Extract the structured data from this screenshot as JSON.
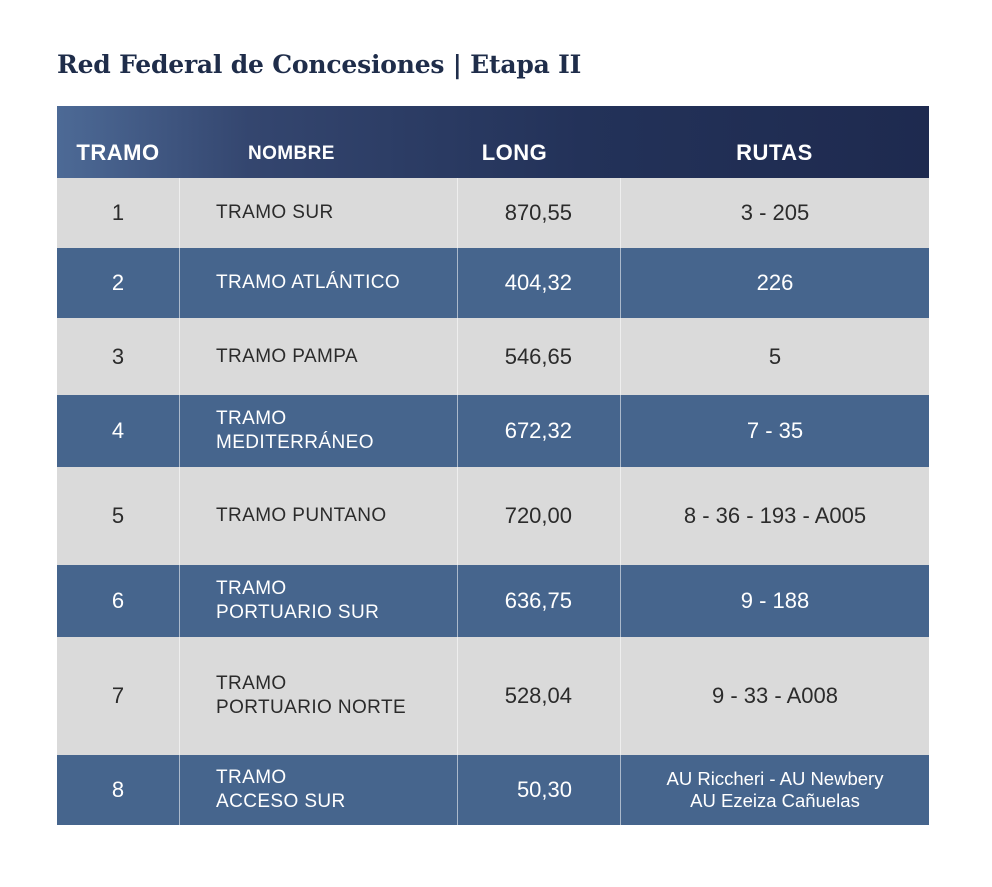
{
  "title": "Red Federal de Concesiones | Etapa II",
  "headers": {
    "tramo": "TRAMO",
    "nombre": "NOMBRE",
    "long": "LONG",
    "rutas": "RUTAS"
  },
  "rows": [
    {
      "tramo": "1",
      "nombre": [
        "TRAMO SUR"
      ],
      "long": "870,55",
      "rutas": [
        "3 - 205"
      ]
    },
    {
      "tramo": "2",
      "nombre": [
        "TRAMO ATLÁNTICO"
      ],
      "long": "404,32",
      "rutas": [
        "226"
      ]
    },
    {
      "tramo": "3",
      "nombre": [
        "TRAMO PAMPA"
      ],
      "long": "546,65",
      "rutas": [
        "5"
      ]
    },
    {
      "tramo": "4",
      "nombre": [
        "TRAMO",
        "MEDITERRÁNEO"
      ],
      "long": "672,32",
      "rutas": [
        "7 - 35"
      ]
    },
    {
      "tramo": "5",
      "nombre": [
        "TRAMO PUNTANO"
      ],
      "long": "720,00",
      "rutas": [
        "8 - 36 - 193 - A005"
      ]
    },
    {
      "tramo": "6",
      "nombre": [
        "TRAMO",
        "PORTUARIO SUR"
      ],
      "long": "636,75",
      "rutas": [
        "9 - 188"
      ]
    },
    {
      "tramo": "7",
      "nombre": [
        "TRAMO",
        "PORTUARIO NORTE"
      ],
      "long": "528,04",
      "rutas": [
        "9 - 33 - A008"
      ]
    },
    {
      "tramo": "8",
      "nombre": [
        "TRAMO",
        "ACCESO SUR"
      ],
      "long": "50,30",
      "rutas": [
        "AU Riccheri - AU Newbery",
        "AU Ezeiza Cañuelas"
      ]
    }
  ],
  "colors": {
    "light_row": "#dadada",
    "dark_row": "#46658d",
    "header_dark": "#1e2a4f",
    "title": "#1f2d4a"
  }
}
